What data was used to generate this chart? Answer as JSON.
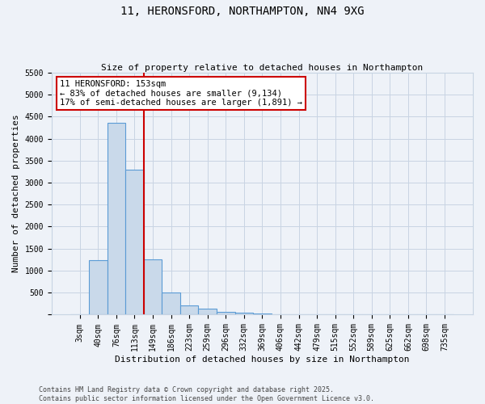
{
  "title_line1": "11, HERONSFORD, NORTHAMPTON, NN4 9XG",
  "title_line2": "Size of property relative to detached houses in Northampton",
  "xlabel": "Distribution of detached houses by size in Northampton",
  "ylabel": "Number of detached properties",
  "bin_labels": [
    "3sqm",
    "40sqm",
    "76sqm",
    "113sqm",
    "149sqm",
    "186sqm",
    "223sqm",
    "259sqm",
    "296sqm",
    "332sqm",
    "369sqm",
    "406sqm",
    "442sqm",
    "479sqm",
    "515sqm",
    "552sqm",
    "589sqm",
    "625sqm",
    "662sqm",
    "698sqm",
    "735sqm"
  ],
  "bar_values": [
    0,
    1230,
    4350,
    3300,
    1250,
    500,
    210,
    130,
    70,
    50,
    30,
    0,
    0,
    0,
    0,
    0,
    0,
    0,
    0,
    0,
    0
  ],
  "bar_color": "#c9d9ea",
  "bar_edge_color": "#5b9bd5",
  "grid_color": "#c8d4e3",
  "background_color": "#eef2f8",
  "vline_color": "#cc0000",
  "vline_pos": 3.5,
  "ylim_max": 5500,
  "yticks": [
    0,
    500,
    1000,
    1500,
    2000,
    2500,
    3000,
    3500,
    4000,
    4500,
    5000,
    5500
  ],
  "annotation_text": "11 HERONSFORD: 153sqm\n← 83% of detached houses are smaller (9,134)\n17% of semi-detached houses are larger (1,891) →",
  "annotation_box_color": "#ffffff",
  "annotation_box_edge": "#cc0000",
  "footer_line1": "Contains HM Land Registry data © Crown copyright and database right 2025.",
  "footer_line2": "Contains public sector information licensed under the Open Government Licence v3.0.",
  "title_fontsize": 10,
  "subtitle_fontsize": 8,
  "tick_fontsize": 7,
  "label_fontsize": 8,
  "annot_fontsize": 7.5,
  "footer_fontsize": 6
}
